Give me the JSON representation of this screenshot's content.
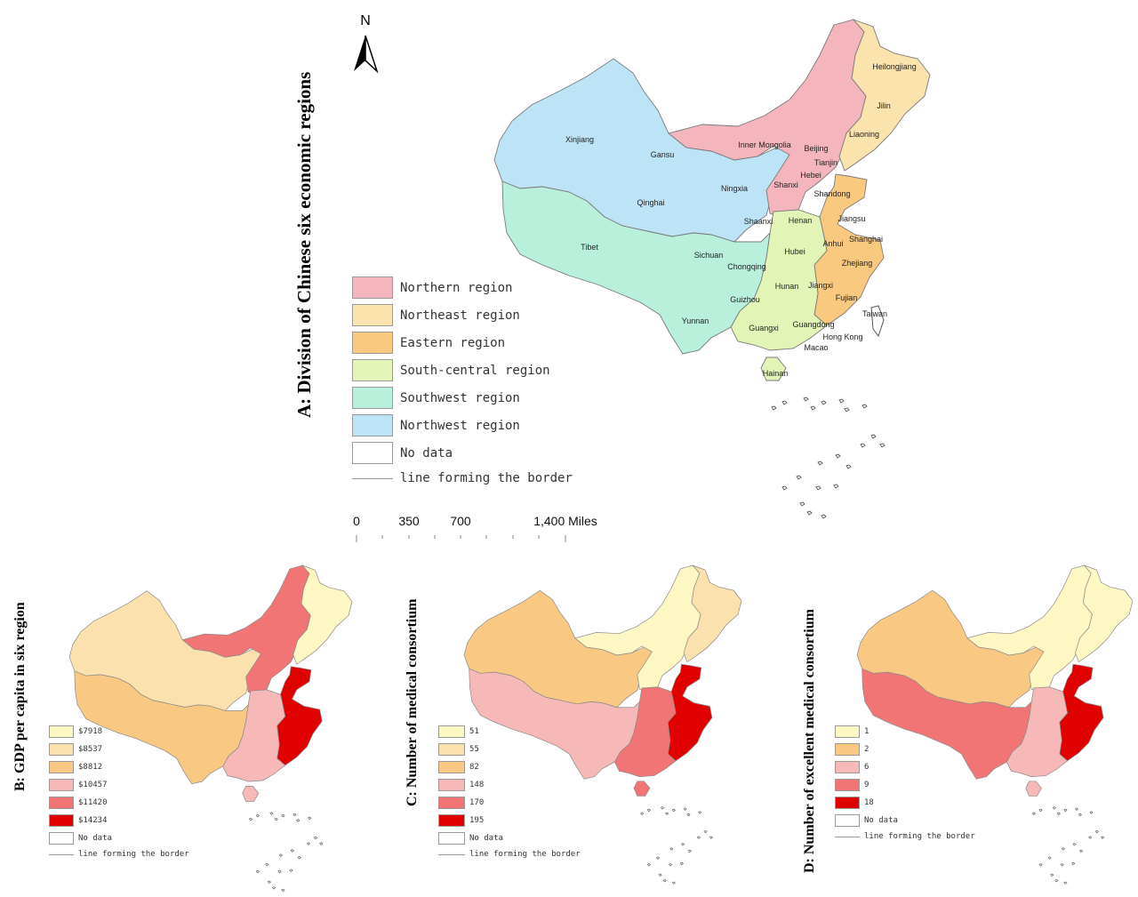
{
  "map_a": {
    "title": "A: Division of Chinese six economic regions",
    "north_label": "N",
    "regions": {
      "northern": {
        "color": "#f4b6bc"
      },
      "northeast": {
        "color": "#fbe3ad"
      },
      "eastern": {
        "color": "#f9c97f"
      },
      "south_central": {
        "color": "#e3f5b6"
      },
      "southwest": {
        "color": "#b8f0dc"
      },
      "northwest": {
        "color": "#bde3f7"
      }
    },
    "legend": [
      {
        "label": "Northern region",
        "color": "#f4b6bc"
      },
      {
        "label": "Northeast region",
        "color": "#fbe3ad"
      },
      {
        "label": "Eastern region",
        "color": "#f9c97f"
      },
      {
        "label": "South-central region",
        "color": "#e3f5b6"
      },
      {
        "label": "Southwest region",
        "color": "#b8f0dc"
      },
      {
        "label": "Northwest region",
        "color": "#bde3f7"
      },
      {
        "label": "No data",
        "color": "#ffffff"
      }
    ],
    "border_label": "line forming the border",
    "scalebar": [
      "0",
      "350",
      "700",
      "1,400 Miles"
    ],
    "provinces": [
      "Heilongjiang",
      "Jilin",
      "Liaoning",
      "Inner Mongolia",
      "Beijing",
      "Tianjin",
      "Hebei",
      "Shanxi",
      "Shandong",
      "Xinjiang",
      "Gansu",
      "Ningxia",
      "Qinghai",
      "Shaanxi",
      "Henan",
      "Jiangsu",
      "Anhui",
      "Shanghai",
      "Tibet",
      "Sichuan",
      "Chongqing",
      "Hubei",
      "Zhejiang",
      "Hunan",
      "Jiangxi",
      "Guizhou",
      "Fujian",
      "Yunnan",
      "Guangxi",
      "Guangdong",
      "Taiwan",
      "Hong Kong",
      "Macao",
      "Hainan"
    ]
  },
  "map_b": {
    "title": "B: GDP per capita in six region",
    "legend": [
      {
        "label": "$7918",
        "color": "#fdf7c3"
      },
      {
        "label": "$8537",
        "color": "#fbe1ad"
      },
      {
        "label": "$8812",
        "color": "#f9c883"
      },
      {
        "label": "$10457",
        "color": "#f7b8b8"
      },
      {
        "label": "$11420",
        "color": "#f27575"
      },
      {
        "label": "$14234",
        "color": "#e00000"
      }
    ],
    "no_data": "No data",
    "border_label": "line forming the border",
    "region_values": {
      "northeast": "$7918",
      "northwest": "$8537",
      "southwest": "$8812",
      "south_central": "$10457",
      "northern": "$11420",
      "eastern": "$14234"
    }
  },
  "map_c": {
    "title": "C: Number of medical consortium",
    "legend": [
      {
        "label": "51",
        "color": "#fdf7c3"
      },
      {
        "label": "55",
        "color": "#fbe1ad"
      },
      {
        "label": "82",
        "color": "#f9c883"
      },
      {
        "label": "148",
        "color": "#f7b8b8"
      },
      {
        "label": "170",
        "color": "#f27575"
      },
      {
        "label": "195",
        "color": "#e00000"
      }
    ],
    "no_data": "No data",
    "border_label": "line forming the border",
    "region_values": {
      "northern": "51",
      "northeast": "55",
      "northwest": "82",
      "southwest": "148",
      "south_central": "170",
      "eastern": "195"
    }
  },
  "map_d": {
    "title": "D: Number of excellent medical consortium",
    "legend": [
      {
        "label": "1",
        "color": "#fdf7c3"
      },
      {
        "label": "2",
        "color": "#f9c883"
      },
      {
        "label": "6",
        "color": "#f7b8b8"
      },
      {
        "label": "9",
        "color": "#f27575"
      },
      {
        "label": "18",
        "color": "#e00000"
      }
    ],
    "no_data": "No data",
    "border_label": "line forming the border",
    "region_values": {
      "northern": "1",
      "northeast": "1",
      "northwest": "2",
      "south_central": "6",
      "southwest": "9",
      "eastern": "18"
    }
  }
}
